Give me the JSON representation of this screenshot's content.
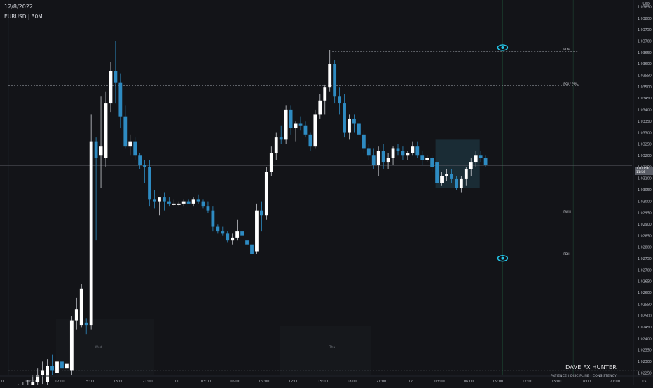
{
  "header": {
    "date": "12/8/2022",
    "symbol": "EURUSD | 30M"
  },
  "currency_label": "USD",
  "brand": {
    "name": "DAVE FX HUNTER",
    "tagline": "PATIENCE | DISCIPLINE | CONSISTENCY"
  },
  "last_price": {
    "value": "1.03156",
    "countdown": "11:56"
  },
  "chart_data": {
    "type": "candlestick",
    "y_range": [
      1.0224,
      1.0388
    ],
    "y_ticks": [
      "1.03850",
      "1.03800",
      "1.03750",
      "1.03700",
      "1.03650",
      "1.03600",
      "1.03550",
      "1.03500",
      "1.03450",
      "1.03400",
      "1.03350",
      "1.03300",
      "1.03250",
      "1.03200",
      "1.03150",
      "1.03100",
      "1.03050",
      "1.03000",
      "1.02950",
      "1.02900",
      "1.02850",
      "1.02800",
      "1.02750",
      "1.02700",
      "1.02650",
      "1.02600",
      "1.02550",
      "1.02500",
      "1.02450",
      "1.02400",
      "1.02350",
      "1.02300",
      "1.02250"
    ],
    "x_ticks": [
      "00",
      "09:00",
      "12:00",
      "15:00",
      "18:00",
      "21:00",
      "11",
      "03:00",
      "06:00",
      "09:00",
      "12:00",
      "15:00",
      "18:00",
      "21:00",
      "12",
      "03:00",
      "06:00",
      "09:00",
      "12:00",
      "15:00",
      "18:00",
      "21:00",
      "15"
    ],
    "x_tick_index": [
      0,
      6,
      12,
      18,
      24,
      30,
      36,
      42,
      48,
      54,
      60,
      66,
      72,
      78,
      84,
      90,
      96,
      102,
      108,
      114,
      120,
      126,
      132
    ],
    "day_labels": [
      {
        "text": "Wed",
        "index": 18.5
      },
      {
        "text": "Thu",
        "index": 66.5
      }
    ],
    "levels": [
      {
        "label": "PDH",
        "price": 1.03655,
        "from_index": 66.5,
        "to_index": 116
      },
      {
        "label": "POI / PML",
        "price": 1.03505,
        "from_index": 0,
        "to_index": 116
      },
      {
        "label": "PWH",
        "price": 1.02945,
        "from_index": 0,
        "to_index": 116
      },
      {
        "label": "PDH",
        "price": 1.02762,
        "from_index": 50.5,
        "to_index": 116
      },
      {
        "label": "",
        "price": 1.02262,
        "from_index": 0,
        "to_index": 132
      }
    ],
    "last_price_line": 1.03156,
    "zone": {
      "from_index": 88,
      "to_index": 96.5,
      "top": 1.0327,
      "bottom": 1.0306
    },
    "eye_markers": [
      {
        "index": 101.5,
        "price": 1.03672
      },
      {
        "index": 101.5,
        "price": 1.02752
      }
    ],
    "candles": [
      {
        "o": 1.0217,
        "h": 1.0219,
        "l": 1.0211,
        "c": 1.0213
      },
      {
        "o": 1.0213,
        "h": 1.0218,
        "l": 1.021,
        "c": 1.0215
      },
      {
        "o": 1.0215,
        "h": 1.022,
        "l": 1.0212,
        "c": 1.0216
      },
      {
        "o": 1.0216,
        "h": 1.0221,
        "l": 1.0213,
        "c": 1.0217
      },
      {
        "o": 1.0217,
        "h": 1.0222,
        "l": 1.0215,
        "c": 1.0219
      },
      {
        "o": 1.0219,
        "h": 1.0224,
        "l": 1.0217,
        "c": 1.0221
      },
      {
        "o": 1.0221,
        "h": 1.0227,
        "l": 1.0219,
        "c": 1.0224
      },
      {
        "o": 1.0224,
        "h": 1.023,
        "l": 1.022,
        "c": 1.0226
      },
      {
        "o": 1.0221,
        "h": 1.0231,
        "l": 1.0218,
        "c": 1.0228
      },
      {
        "o": 1.0228,
        "h": 1.0233,
        "l": 1.0224,
        "c": 1.0226
      },
      {
        "o": 1.0225,
        "h": 1.0231,
        "l": 1.0223,
        "c": 1.023
      },
      {
        "o": 1.023,
        "h": 1.0236,
        "l": 1.0226,
        "c": 1.0227
      },
      {
        "o": 1.0227,
        "h": 1.0231,
        "l": 1.0224,
        "c": 1.0229
      },
      {
        "o": 1.0226,
        "h": 1.025,
        "l": 1.0224,
        "c": 1.0248
      },
      {
        "o": 1.0248,
        "h": 1.0258,
        "l": 1.0244,
        "c": 1.0253
      },
      {
        "o": 1.0246,
        "h": 1.0264,
        "l": 1.0245,
        "c": 1.0262
      },
      {
        "o": 1.0247,
        "h": 1.0249,
        "l": 1.0242,
        "c": 1.0246
      },
      {
        "o": 1.0246,
        "h": 1.0338,
        "l": 1.0244,
        "c": 1.0326
      },
      {
        "o": 1.0326,
        "h": 1.0328,
        "l": 1.0283,
        "c": 1.0319
      },
      {
        "o": 1.032,
        "h": 1.0346,
        "l": 1.0306,
        "c": 1.0324
      },
      {
        "o": 1.0319,
        "h": 1.0348,
        "l": 1.0315,
        "c": 1.0343
      },
      {
        "o": 1.0343,
        "h": 1.0361,
        "l": 1.0339,
        "c": 1.0357
      },
      {
        "o": 1.0357,
        "h": 1.037,
        "l": 1.0343,
        "c": 1.0352
      },
      {
        "o": 1.0352,
        "h": 1.0356,
        "l": 1.0332,
        "c": 1.0337
      },
      {
        "o": 1.0337,
        "h": 1.0342,
        "l": 1.0323,
        "c": 1.0324
      },
      {
        "o": 1.0324,
        "h": 1.0329,
        "l": 1.032,
        "c": 1.0326
      },
      {
        "o": 1.0326,
        "h": 1.0328,
        "l": 1.0318,
        "c": 1.032
      },
      {
        "o": 1.032,
        "h": 1.0321,
        "l": 1.0314,
        "c": 1.0316
      },
      {
        "o": 1.0316,
        "h": 1.0318,
        "l": 1.0308,
        "c": 1.0315
      },
      {
        "o": 1.0315,
        "h": 1.0318,
        "l": 1.0298,
        "c": 1.0301
      },
      {
        "o": 1.0301,
        "h": 1.0305,
        "l": 1.0297,
        "c": 1.03
      },
      {
        "o": 1.03,
        "h": 1.0302,
        "l": 1.0294,
        "c": 1.0302
      },
      {
        "o": 1.0302,
        "h": 1.0304,
        "l": 1.0296,
        "c": 1.03
      },
      {
        "o": 1.03,
        "h": 1.0302,
        "l": 1.0298,
        "c": 1.0299
      },
      {
        "o": 1.0299,
        "h": 1.0301,
        "l": 1.0298,
        "c": 1.0299
      },
      {
        "o": 1.0299,
        "h": 1.03,
        "l": 1.0298,
        "c": 1.0299
      },
      {
        "o": 1.0299,
        "h": 1.0301,
        "l": 1.0298,
        "c": 1.03
      },
      {
        "o": 1.03,
        "h": 1.0301,
        "l": 1.0299,
        "c": 1.0299
      },
      {
        "o": 1.0299,
        "h": 1.0302,
        "l": 1.0298,
        "c": 1.0301
      },
      {
        "o": 1.0301,
        "h": 1.0303,
        "l": 1.0299,
        "c": 1.03
      },
      {
        "o": 1.03,
        "h": 1.0301,
        "l": 1.0297,
        "c": 1.0298
      },
      {
        "o": 1.0298,
        "h": 1.03,
        "l": 1.0295,
        "c": 1.0296
      },
      {
        "o": 1.0296,
        "h": 1.0298,
        "l": 1.0287,
        "c": 1.0289
      },
      {
        "o": 1.0289,
        "h": 1.029,
        "l": 1.0286,
        "c": 1.0287
      },
      {
        "o": 1.0287,
        "h": 1.0289,
        "l": 1.0285,
        "c": 1.0286
      },
      {
        "o": 1.0286,
        "h": 1.0287,
        "l": 1.0282,
        "c": 1.0283
      },
      {
        "o": 1.0283,
        "h": 1.0286,
        "l": 1.0281,
        "c": 1.0284
      },
      {
        "o": 1.0284,
        "h": 1.0292,
        "l": 1.0283,
        "c": 1.0287
      },
      {
        "o": 1.0287,
        "h": 1.0288,
        "l": 1.0282,
        "c": 1.0285
      },
      {
        "o": 1.0283,
        "h": 1.0285,
        "l": 1.028,
        "c": 1.0281
      },
      {
        "o": 1.0281,
        "h": 1.0282,
        "l": 1.0276,
        "c": 1.0277
      },
      {
        "o": 1.0278,
        "h": 1.0299,
        "l": 1.0277,
        "c": 1.0296
      },
      {
        "o": 1.0296,
        "h": 1.03,
        "l": 1.0287,
        "c": 1.0294
      },
      {
        "o": 1.0294,
        "h": 1.0315,
        "l": 1.0292,
        "c": 1.0313
      },
      {
        "o": 1.0313,
        "h": 1.0324,
        "l": 1.0311,
        "c": 1.0321
      },
      {
        "o": 1.0321,
        "h": 1.033,
        "l": 1.0318,
        "c": 1.0328
      },
      {
        "o": 1.0328,
        "h": 1.0333,
        "l": 1.0325,
        "c": 1.0327
      },
      {
        "o": 1.0327,
        "h": 1.0342,
        "l": 1.0325,
        "c": 1.034
      },
      {
        "o": 1.034,
        "h": 1.0342,
        "l": 1.0329,
        "c": 1.0332
      },
      {
        "o": 1.0332,
        "h": 1.0335,
        "l": 1.0326,
        "c": 1.0334
      },
      {
        "o": 1.0334,
        "h": 1.0337,
        "l": 1.0331,
        "c": 1.0333
      },
      {
        "o": 1.0333,
        "h": 1.0335,
        "l": 1.0328,
        "c": 1.0329
      },
      {
        "o": 1.0329,
        "h": 1.033,
        "l": 1.0322,
        "c": 1.0324
      },
      {
        "o": 1.0324,
        "h": 1.034,
        "l": 1.0323,
        "c": 1.0338
      },
      {
        "o": 1.0338,
        "h": 1.0347,
        "l": 1.0336,
        "c": 1.0344
      },
      {
        "o": 1.0344,
        "h": 1.0351,
        "l": 1.0338,
        "c": 1.035
      },
      {
        "o": 1.035,
        "h": 1.0366,
        "l": 1.0348,
        "c": 1.036
      },
      {
        "o": 1.036,
        "h": 1.0362,
        "l": 1.0343,
        "c": 1.0346
      },
      {
        "o": 1.0346,
        "h": 1.035,
        "l": 1.0338,
        "c": 1.0343
      },
      {
        "o": 1.0343,
        "h": 1.0347,
        "l": 1.0328,
        "c": 1.033
      },
      {
        "o": 1.033,
        "h": 1.0338,
        "l": 1.0327,
        "c": 1.0336
      },
      {
        "o": 1.0336,
        "h": 1.0338,
        "l": 1.033,
        "c": 1.0334
      },
      {
        "o": 1.0334,
        "h": 1.0336,
        "l": 1.0327,
        "c": 1.0329
      },
      {
        "o": 1.0329,
        "h": 1.0331,
        "l": 1.0321,
        "c": 1.0323
      },
      {
        "o": 1.0323,
        "h": 1.0325,
        "l": 1.0318,
        "c": 1.032
      },
      {
        "o": 1.032,
        "h": 1.0323,
        "l": 1.0314,
        "c": 1.0316
      },
      {
        "o": 1.0316,
        "h": 1.0324,
        "l": 1.0311,
        "c": 1.0322
      },
      {
        "o": 1.0322,
        "h": 1.0325,
        "l": 1.0314,
        "c": 1.0317
      },
      {
        "o": 1.0317,
        "h": 1.0321,
        "l": 1.0314,
        "c": 1.0319
      },
      {
        "o": 1.0319,
        "h": 1.0324,
        "l": 1.0316,
        "c": 1.0323
      },
      {
        "o": 1.0323,
        "h": 1.0325,
        "l": 1.032,
        "c": 1.0322
      },
      {
        "o": 1.0322,
        "h": 1.0324,
        "l": 1.0318,
        "c": 1.032
      },
      {
        "o": 1.032,
        "h": 1.0322,
        "l": 1.0318,
        "c": 1.0321
      },
      {
        "o": 1.0321,
        "h": 1.0326,
        "l": 1.032,
        "c": 1.0324
      },
      {
        "o": 1.0324,
        "h": 1.0326,
        "l": 1.0319,
        "c": 1.032
      },
      {
        "o": 1.032,
        "h": 1.0322,
        "l": 1.0316,
        "c": 1.0318
      },
      {
        "o": 1.0318,
        "h": 1.032,
        "l": 1.0317,
        "c": 1.0319
      },
      {
        "o": 1.0319,
        "h": 1.032,
        "l": 1.0313,
        "c": 1.0315
      },
      {
        "o": 1.0317,
        "h": 1.0318,
        "l": 1.0306,
        "c": 1.0308
      },
      {
        "o": 1.0308,
        "h": 1.0313,
        "l": 1.0307,
        "c": 1.0311
      },
      {
        "o": 1.0311,
        "h": 1.0314,
        "l": 1.0309,
        "c": 1.0312
      },
      {
        "o": 1.0312,
        "h": 1.0314,
        "l": 1.0308,
        "c": 1.031
      },
      {
        "o": 1.031,
        "h": 1.0311,
        "l": 1.0305,
        "c": 1.0306
      },
      {
        "o": 1.0306,
        "h": 1.0311,
        "l": 1.0304,
        "c": 1.031
      },
      {
        "o": 1.031,
        "h": 1.0315,
        "l": 1.0307,
        "c": 1.0314
      },
      {
        "o": 1.0314,
        "h": 1.0319,
        "l": 1.0311,
        "c": 1.0317
      },
      {
        "o": 1.0317,
        "h": 1.0322,
        "l": 1.0315,
        "c": 1.032
      },
      {
        "o": 1.032,
        "h": 1.0322,
        "l": 1.0317,
        "c": 1.0319
      },
      {
        "o": 1.0319,
        "h": 1.032,
        "l": 1.0315,
        "c": 1.0316
      }
    ]
  }
}
